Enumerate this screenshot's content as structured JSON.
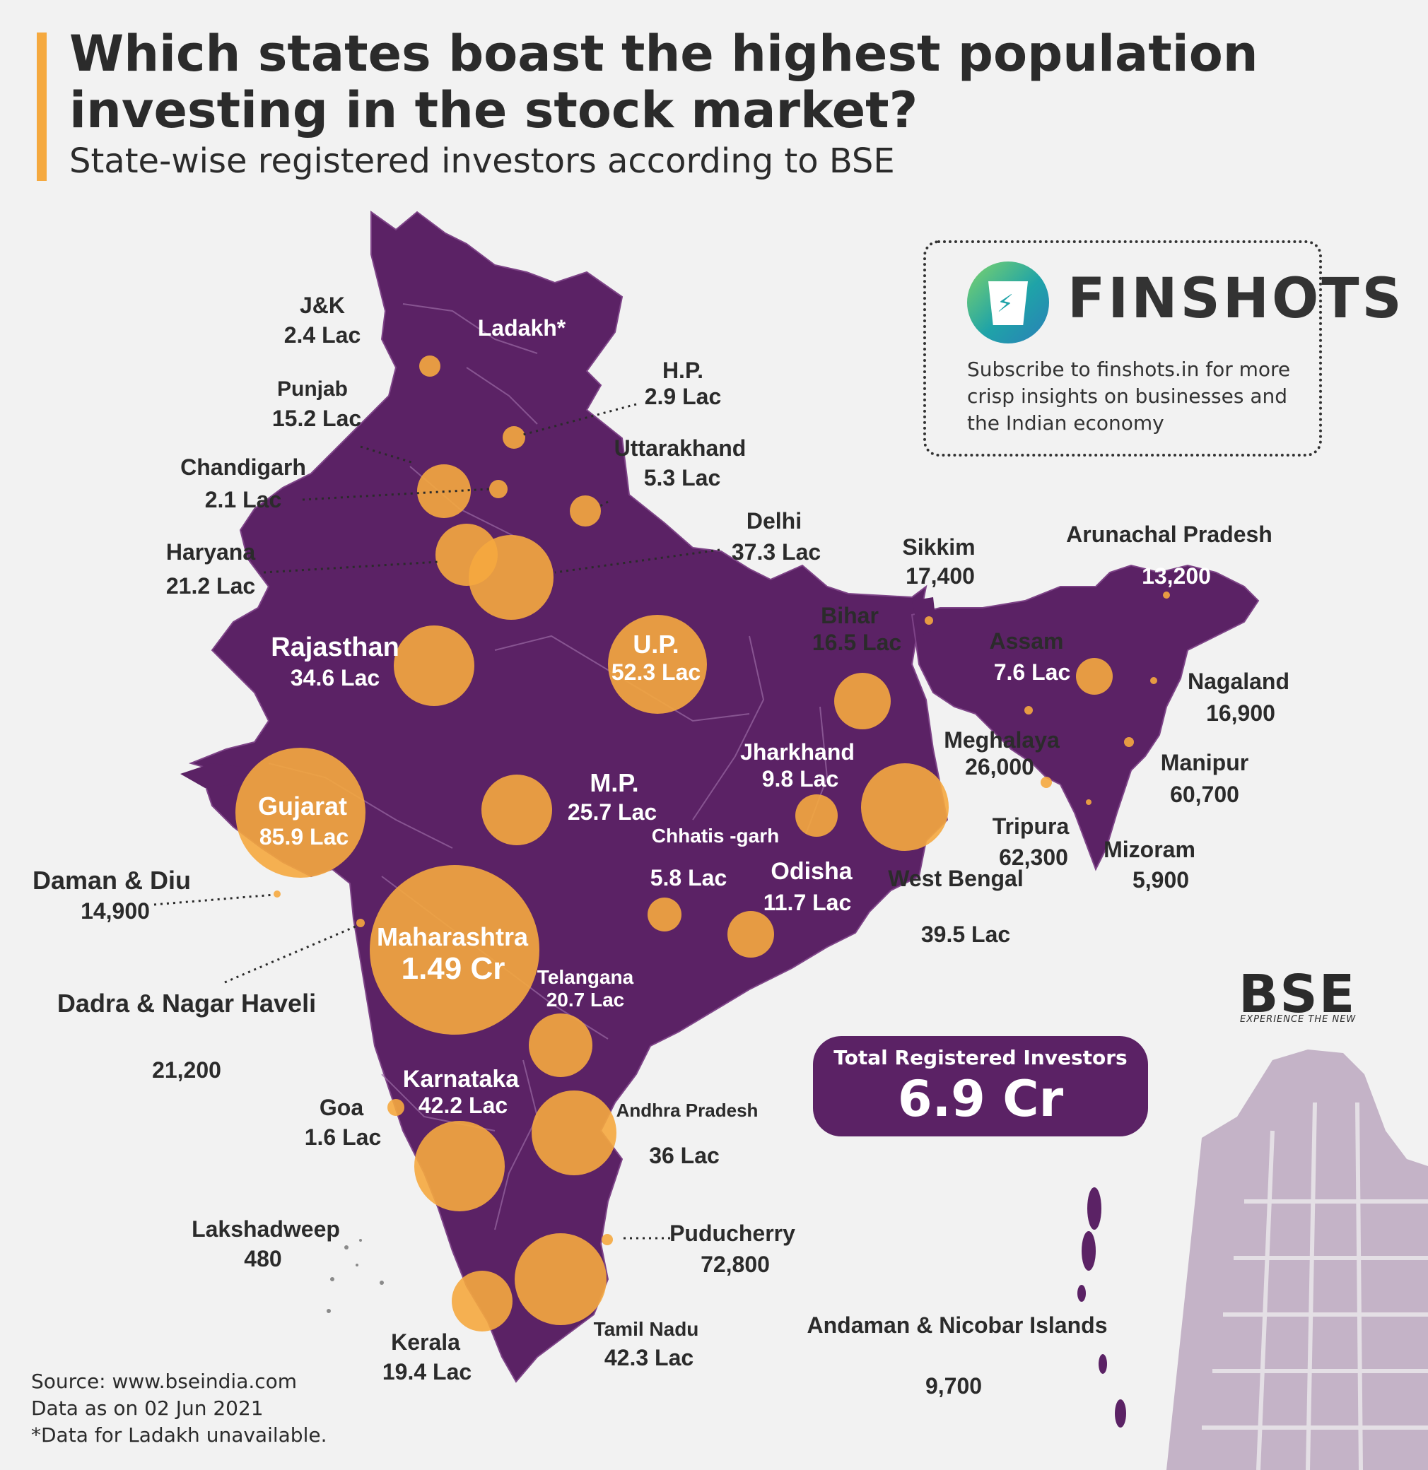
{
  "header": {
    "title": "Which states boast the highest population investing in the stock market?",
    "subtitle": "State-wise registered investors according to BSE"
  },
  "colors": {
    "map_fill": "#5b2265",
    "bubble": "#f5a93f",
    "accent": "#f5a93f",
    "building": "#c4b3c7"
  },
  "regions": [
    {
      "id": "jk",
      "name": "J&K",
      "value": "2.4 Lac",
      "investors": 240000
    },
    {
      "id": "ladakh",
      "name": "Ladakh*",
      "value": "",
      "investors": null
    },
    {
      "id": "hp",
      "name": "H.P.",
      "value": "2.9 Lac",
      "investors": 290000
    },
    {
      "id": "punjab",
      "name": "Punjab",
      "value": "15.2 Lac",
      "investors": 1520000
    },
    {
      "id": "chandigarh",
      "name": "Chandigarh",
      "value": "2.1 Lac",
      "investors": 210000
    },
    {
      "id": "uttarakhand",
      "name": "Uttarakhand",
      "value": "5.3 Lac",
      "investors": 530000
    },
    {
      "id": "haryana",
      "name": "Haryana",
      "value": "21.2 Lac",
      "investors": 2120000
    },
    {
      "id": "delhi",
      "name": "Delhi",
      "value": "37.3 Lac",
      "investors": 3730000
    },
    {
      "id": "rajasthan",
      "name": "Rajasthan",
      "value": "34.6 Lac",
      "investors": 3460000
    },
    {
      "id": "up",
      "name": "U.P.",
      "value": "52.3 Lac",
      "investors": 5230000
    },
    {
      "id": "bihar",
      "name": "Bihar",
      "value": "16.5 Lac",
      "investors": 1650000
    },
    {
      "id": "sikkim",
      "name": "Sikkim",
      "value": "17,400",
      "investors": 17400
    },
    {
      "id": "arunachal",
      "name": "Arunachal Pradesh",
      "value": "13,200",
      "investors": 13200
    },
    {
      "id": "assam",
      "name": "Assam",
      "value": "7.6 Lac",
      "investors": 760000
    },
    {
      "id": "nagaland",
      "name": "Nagaland",
      "value": "16,900",
      "investors": 16900
    },
    {
      "id": "meghalaya",
      "name": "Meghalaya",
      "value": "26,000",
      "investors": 26000
    },
    {
      "id": "manipur",
      "name": "Manipur",
      "value": "60,700",
      "investors": 60700
    },
    {
      "id": "tripura",
      "name": "Tripura",
      "value": "62,300",
      "investors": 62300
    },
    {
      "id": "mizoram",
      "name": "Mizoram",
      "value": "5,900",
      "investors": 5900
    },
    {
      "id": "gujarat",
      "name": "Gujarat",
      "value": "85.9 Lac",
      "investors": 8590000
    },
    {
      "id": "mp",
      "name": "M.P.",
      "value": "25.7 Lac",
      "investors": 2570000
    },
    {
      "id": "jharkhand",
      "name": "Jharkhand",
      "value": "9.8 Lac",
      "investors": 980000
    },
    {
      "id": "westbengal",
      "name": "West Bengal",
      "value": "39.5 Lac",
      "investors": 3950000
    },
    {
      "id": "chhattisgarh",
      "name": "Chhatis -garh",
      "value": "5.8 Lac",
      "investors": 580000
    },
    {
      "id": "odisha",
      "name": "Odisha",
      "value": "11.7 Lac",
      "investors": 1170000
    },
    {
      "id": "damandiu",
      "name": "Daman & Diu",
      "value": "14,900",
      "investors": 14900
    },
    {
      "id": "dnh",
      "name": "Dadra & Nagar Haveli",
      "value": "21,200",
      "investors": 21200
    },
    {
      "id": "maharashtra",
      "name": "Maharashtra",
      "value": "1.49 Cr",
      "investors": 14900000
    },
    {
      "id": "telangana",
      "name": "Telangana",
      "value": "20.7 Lac",
      "investors": 2070000
    },
    {
      "id": "goa",
      "name": "Goa",
      "value": "1.6 Lac",
      "investors": 160000
    },
    {
      "id": "karnataka",
      "name": "Karnataka",
      "value": "42.2 Lac",
      "investors": 4220000
    },
    {
      "id": "andhra",
      "name": "Andhra Pradesh",
      "value": "36 Lac",
      "investors": 3600000
    },
    {
      "id": "lakshadweep",
      "name": "Lakshadweep",
      "value": "480",
      "investors": 480
    },
    {
      "id": "puducherry",
      "name": "Puducherry",
      "value": "72,800",
      "investors": 72800
    },
    {
      "id": "kerala",
      "name": "Kerala",
      "value": "19.4 Lac",
      "investors": 1940000
    },
    {
      "id": "tamilnadu",
      "name": "Tamil Nadu",
      "value": "42.3 Lac",
      "investors": 4230000
    },
    {
      "id": "andaman",
      "name": "Andaman & Nicobar Islands",
      "value": "9,700",
      "investors": 9700
    }
  ],
  "finshots": {
    "name": "FINSHOTS",
    "blurb": "Subscribe to finshots.in for more crisp insights on businesses and the Indian economy"
  },
  "bse": {
    "logo": "BSE",
    "tagline": "EXPERIENCE THE NEW"
  },
  "total": {
    "label": "Total Registered Investors",
    "value": "6.9 Cr"
  },
  "footnotes": {
    "source": "Source: www.bseindia.com",
    "date": "Data as on 02 Jun 2021",
    "note": "*Data for Ladakh unavailable."
  }
}
